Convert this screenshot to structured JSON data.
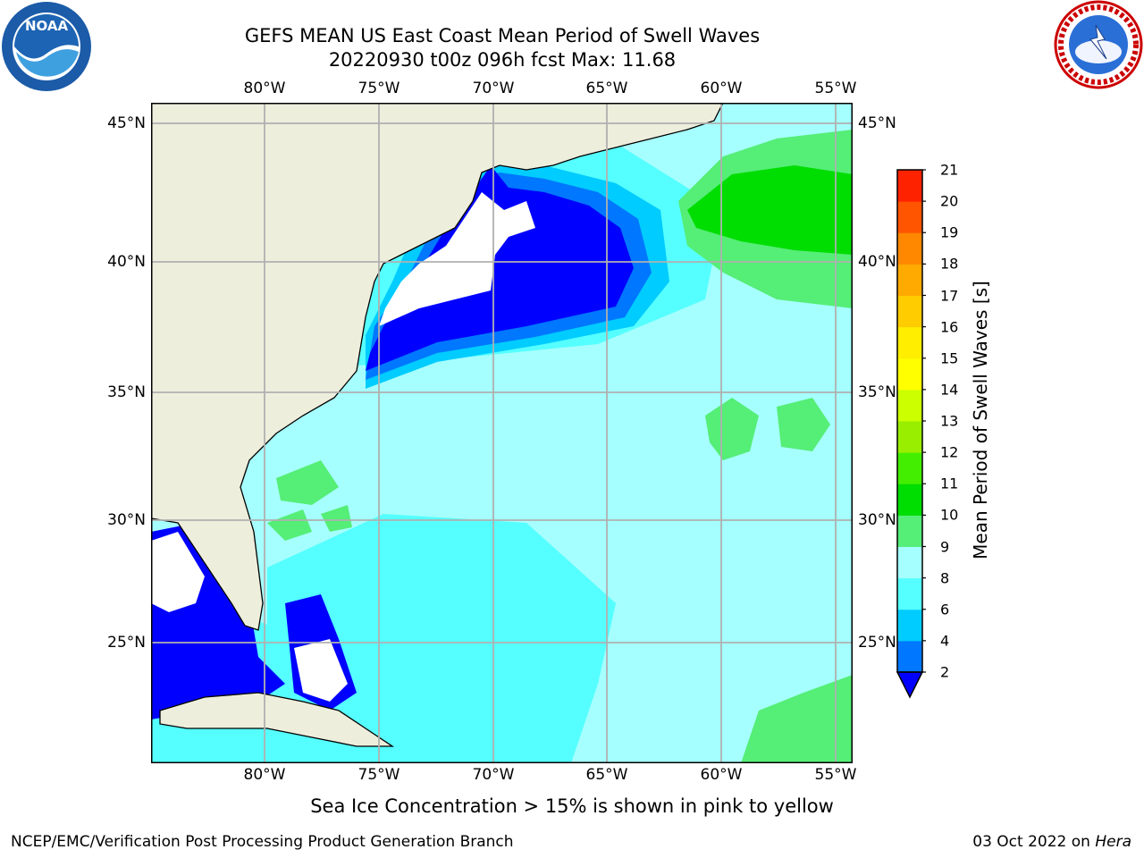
{
  "title": {
    "line1": "GEFS MEAN US East Coast Mean Period of Swell Waves",
    "line2": "20220930 t00z 096h fcst   Max: 11.68"
  },
  "map": {
    "extent_lon": [
      -85,
      -54.2
    ],
    "extent_lat": [
      20.5,
      45.8
    ],
    "lon_labels_top": [
      "80°W",
      "75°W",
      "70°W",
      "65°W",
      "60°W",
      "55°W"
    ],
    "lon_labels_bottom": [
      "80°W",
      "75°W",
      "70°W",
      "65°W",
      "60°W",
      "55°W"
    ],
    "lat_labels_left": [
      "45°N",
      "40°N",
      "35°N",
      "30°N",
      "25°N"
    ],
    "lat_labels_right": [
      "45°N",
      "40°N",
      "35°N",
      "30°N",
      "25°N"
    ],
    "land_color": "#eeeedd",
    "ocean_base_color": "#a6ffff"
  },
  "colorbar": {
    "label": "Mean Period of Swell Waves [s]",
    "ticks": [
      "2",
      "4",
      "6",
      "8",
      "9",
      "10",
      "11",
      "12",
      "13",
      "14",
      "15",
      "16",
      "17",
      "18",
      "19",
      "20",
      "21"
    ],
    "colors": [
      "#0077ff",
      "#00ccff",
      "#55ffff",
      "#a6ffff",
      "#55ee77",
      "#00dd00",
      "#44ee00",
      "#99ee00",
      "#ccff00",
      "#ffff00",
      "#ffee00",
      "#ffcc00",
      "#ffaa00",
      "#ff8800",
      "#ff5500",
      "#ff2200"
    ],
    "under_color": "#0000ff"
  },
  "footnote": "Sea Ice Concentration > 15% is shown in pink to yellow",
  "footer": {
    "left": "NCEP/EMC/Verification Post Processing Product Generation Branch",
    "right_prefix": "03 Oct 2022 on ",
    "right_host": "Hera"
  },
  "logos": {
    "left": "NOAA",
    "right": "NATIONAL WEATHER SERVICE"
  }
}
